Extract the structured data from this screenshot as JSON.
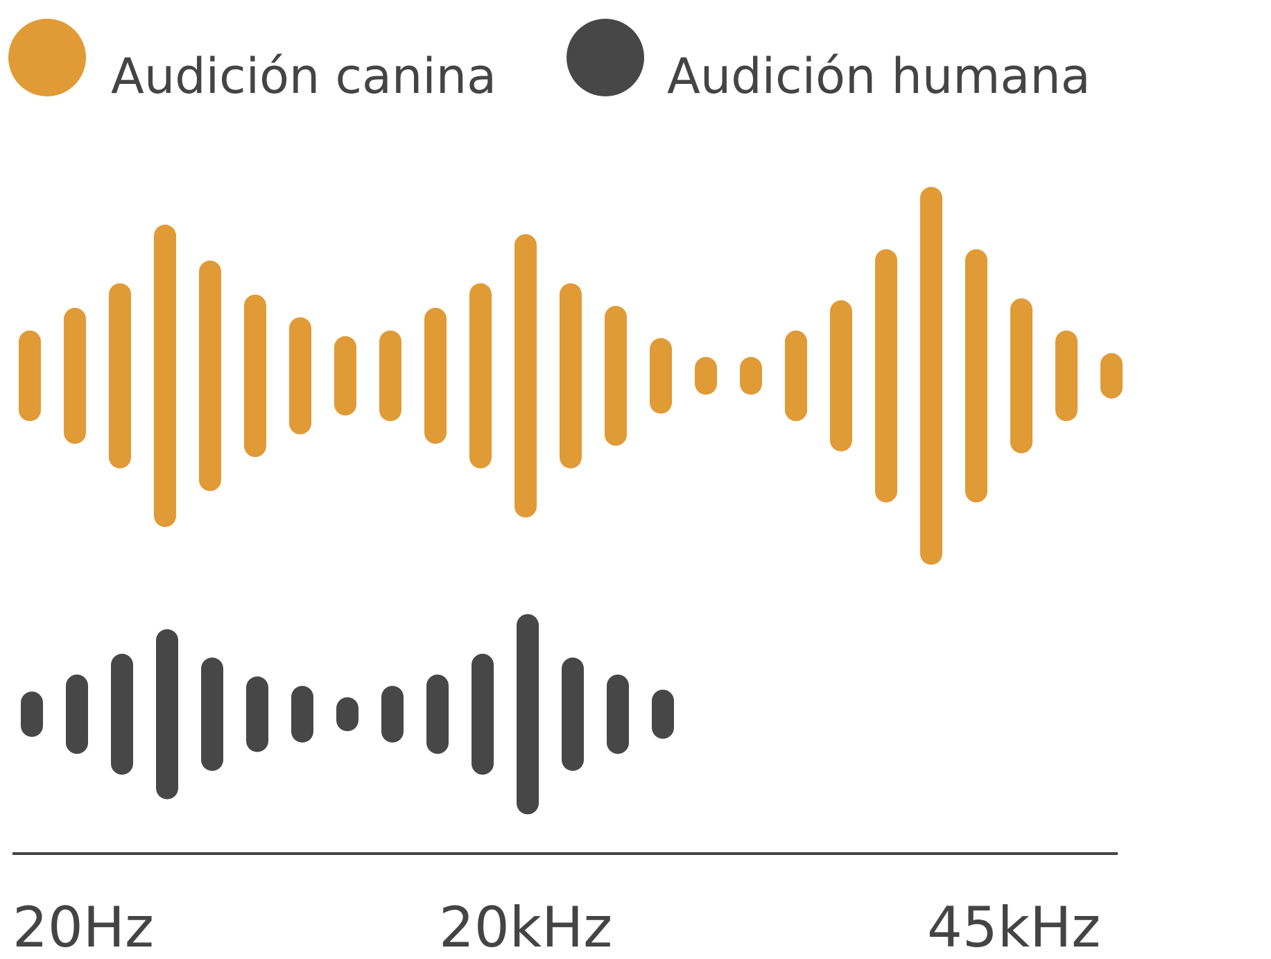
{
  "chart_data": {
    "type": "bar",
    "x_ticks": [
      "20Hz",
      "20kHz",
      "45kHz"
    ],
    "series": [
      {
        "name": "Audición canina",
        "color": "#E09A36",
        "values": [
          0.24,
          0.36,
          0.49,
          0.8,
          0.61,
          0.43,
          0.31,
          0.21,
          0.24,
          0.36,
          0.49,
          0.75,
          0.49,
          0.37,
          0.2,
          0.1,
          0.1,
          0.24,
          0.4,
          0.67,
          1.0,
          0.67,
          0.41,
          0.24,
          0.12
        ]
      },
      {
        "name": "Audición humana",
        "color": "#474747",
        "values": [
          0.12,
          0.21,
          0.32,
          0.45,
          0.3,
          0.2,
          0.15,
          0.09,
          0.15,
          0.21,
          0.32,
          0.53,
          0.3,
          0.21,
          0.13
        ]
      }
    ]
  }
}
